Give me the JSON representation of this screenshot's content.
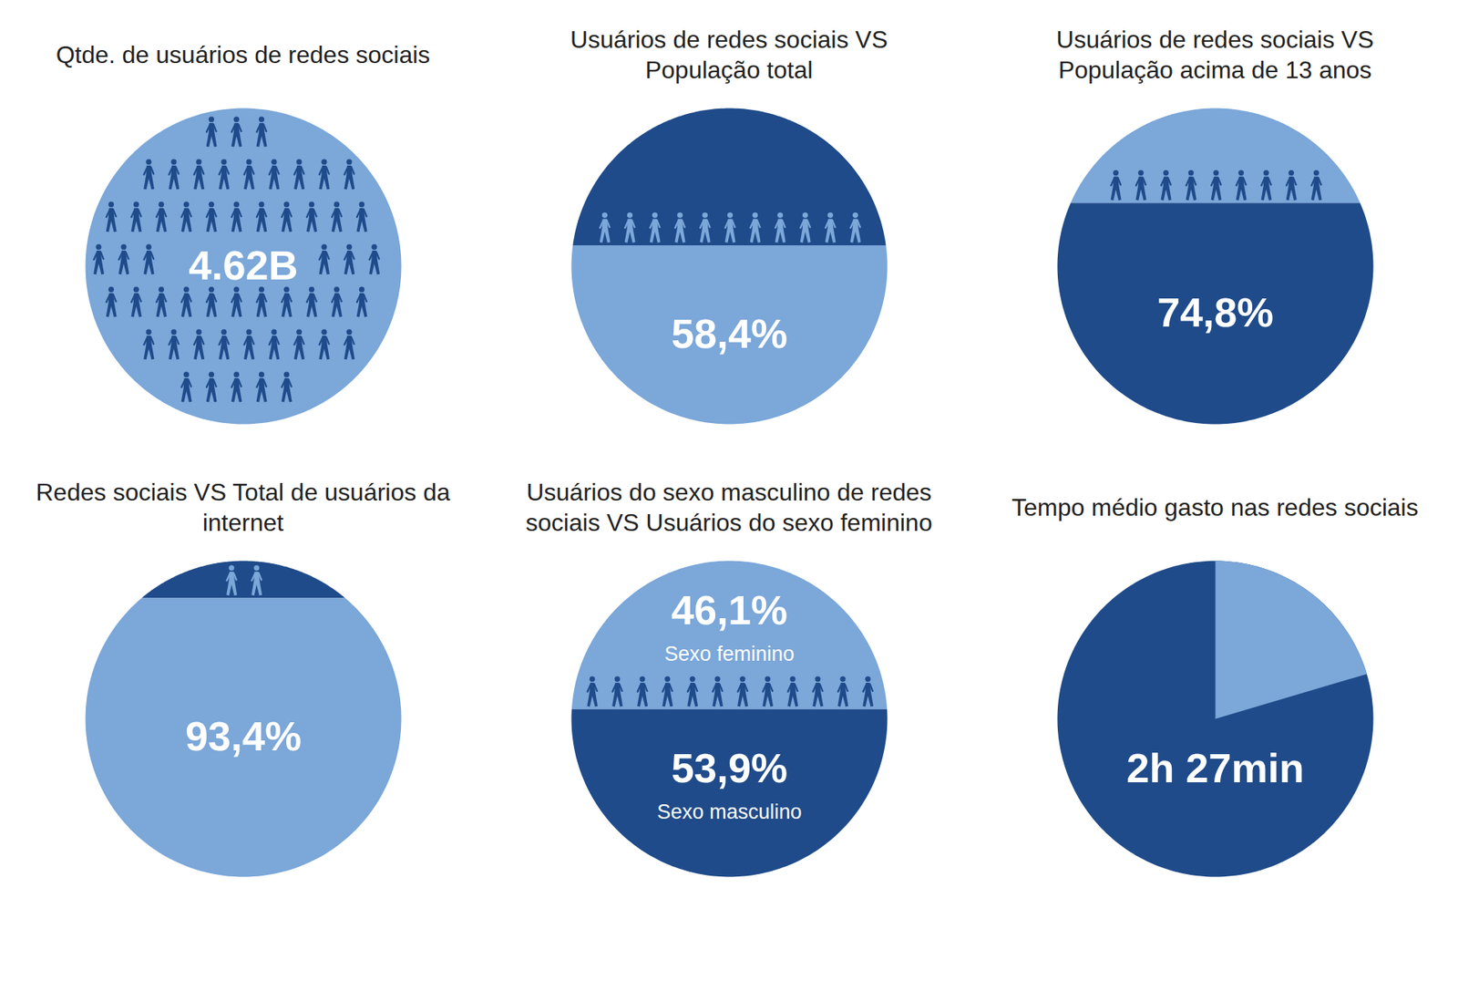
{
  "chart_data": [
    {
      "type": "count",
      "title": "Qtde. de usuários de redes sociais",
      "values": [
        4620000000
      ],
      "value_labels": [
        "4.62B"
      ],
      "colors": [
        "#7ba7d9",
        "#1f4b8a"
      ],
      "data_labels": true
    },
    {
      "type": "fill",
      "title": "Usuários de redes sociais VS População total",
      "values": [
        58.4
      ],
      "value_labels": [
        "58,4%"
      ],
      "colors": [
        "#1f4b8a",
        "#7ba7d9"
      ],
      "data_labels": true
    },
    {
      "type": "fill",
      "title": "Usuários de redes sociais VS População acima de 13 anos",
      "values": [
        74.8
      ],
      "value_labels": [
        "74,8%"
      ],
      "colors": [
        "#7ba7d9",
        "#1f4b8a"
      ],
      "data_labels": true
    },
    {
      "type": "fill",
      "title": "Redes sociais VS Total de usuários da internet",
      "values": [
        93.4
      ],
      "value_labels": [
        "93,4%"
      ],
      "colors": [
        "#1f4b8a",
        "#7ba7d9"
      ],
      "data_labels": true
    },
    {
      "type": "fill",
      "title": "Usuários do sexo masculino de redes sociais VS Usuários do sexo feminino",
      "categories": [
        "Sexo feminino",
        "Sexo masculino"
      ],
      "values": [
        46.1,
        53.9
      ],
      "value_labels": [
        "46,1%",
        "53,9%"
      ],
      "colors": [
        "#7ba7d9",
        "#1f4b8a"
      ],
      "data_labels": true
    },
    {
      "type": "clock",
      "title": "Tempo médio gasto nas redes sociais",
      "values": [
        147
      ],
      "value_labels": [
        "2h 27min"
      ],
      "colors": [
        "#7ba7d9",
        "#1f4b8a"
      ],
      "data_labels": true
    }
  ]
}
